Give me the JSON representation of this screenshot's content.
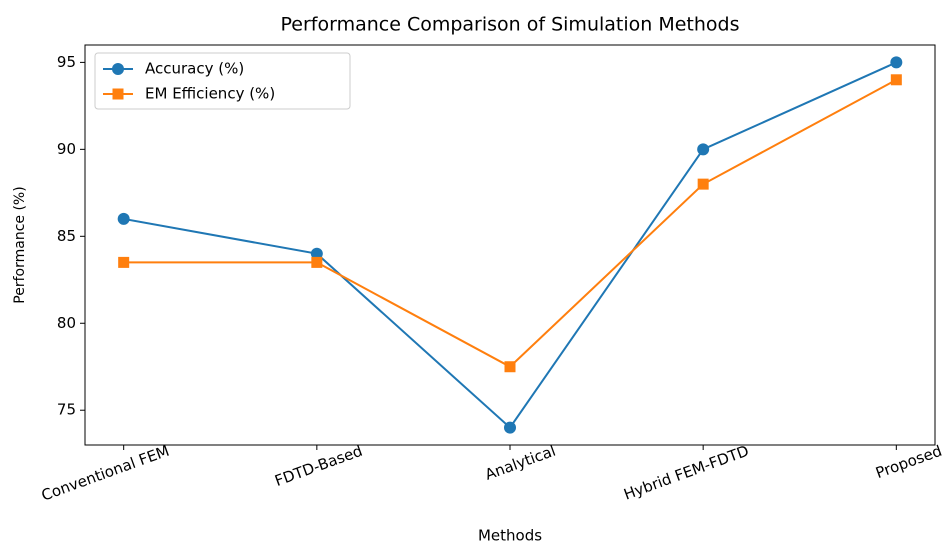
{
  "chart_data": {
    "type": "line",
    "title": "Performance Comparison of Simulation Methods",
    "x_label": "Methods",
    "y_label": "Performance (%)",
    "categories": [
      "Conventional FEM",
      "FDTD-Based",
      "Analytical",
      "Hybrid FEM-FDTD",
      "Proposed"
    ],
    "series": [
      {
        "name": "Accuracy (%)",
        "color": "#1f77b4",
        "marker": "circle",
        "values": [
          86,
          84,
          74,
          90,
          95
        ]
      },
      {
        "name": "EM Efficiency (%)",
        "color": "#ff7f0e",
        "marker": "square",
        "values": [
          83.5,
          83.5,
          77.5,
          88,
          94
        ]
      }
    ],
    "ylim": [
      73,
      96
    ],
    "yticks": [
      75,
      80,
      85,
      90,
      95
    ],
    "grid": false,
    "legend": "upper left"
  }
}
